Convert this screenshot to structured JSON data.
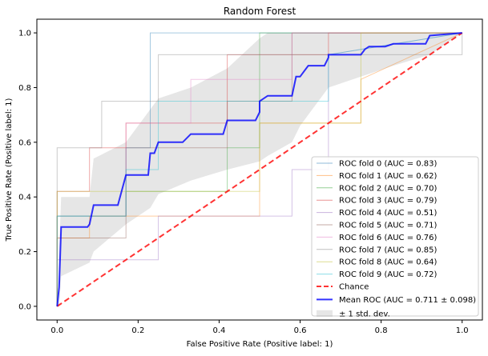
{
  "chart_data": {
    "type": "line",
    "title": "Random Forest",
    "xlabel": "False Positive Rate (Positive label: 1)",
    "ylabel": "True Positive Rate (Positive label: 1)",
    "xlim": [
      -0.05,
      1.05
    ],
    "ylim": [
      -0.05,
      1.05
    ],
    "xticks": [
      0.0,
      0.2,
      0.4,
      0.6,
      0.8,
      1.0
    ],
    "yticks": [
      0.0,
      0.2,
      0.4,
      0.6,
      0.8,
      1.0
    ],
    "xtick_labels": [
      "0.0",
      "0.2",
      "0.4",
      "0.6",
      "0.8",
      "1.0"
    ],
    "ytick_labels": [
      "0.0",
      "0.2",
      "0.4",
      "0.6",
      "0.8",
      "1.0"
    ],
    "grid": false,
    "legend_position": "lower-right",
    "series": [
      {
        "name": "ROC fold 0 (AUC = 0.83)",
        "color": "#1f77b4",
        "x": [
          0,
          0,
          0.17,
          0.17,
          0.23,
          0.23,
          1.0
        ],
        "y": [
          0,
          0.33,
          0.33,
          0.58,
          0.58,
          1.0,
          1.0
        ]
      },
      {
        "name": "ROC fold 1 (AUC = 0.62)",
        "color": "#ff7f0e",
        "x": [
          0,
          0,
          0.08,
          0.08,
          0.5,
          0.5,
          0.75,
          0.75,
          1.0
        ],
        "y": [
          0,
          0.25,
          0.25,
          0.33,
          0.33,
          0.67,
          0.67,
          0.83,
          1.0
        ]
      },
      {
        "name": "ROC fold 2 (AUC = 0.70)",
        "color": "#2ca02c",
        "x": [
          0,
          0,
          0.17,
          0.17,
          0.42,
          0.42,
          0.5,
          0.5,
          0.58,
          0.58,
          1.0
        ],
        "y": [
          0,
          0.33,
          0.33,
          0.42,
          0.42,
          0.58,
          0.58,
          1.0,
          1.0,
          1.0,
          1.0
        ]
      },
      {
        "name": "ROC fold 3 (AUC = 0.79)",
        "color": "#d62728",
        "x": [
          0,
          0,
          0.08,
          0.08,
          0.17,
          0.17,
          0.42,
          0.42,
          0.67,
          0.67,
          1.0
        ],
        "y": [
          0,
          0.42,
          0.42,
          0.58,
          0.58,
          0.67,
          0.67,
          0.92,
          0.92,
          1.0,
          1.0
        ]
      },
      {
        "name": "ROC fold 4 (AUC = 0.51)",
        "color": "#9467bd",
        "x": [
          0,
          0,
          0.25,
          0.25,
          0.58,
          0.58,
          0.67,
          0.67,
          1.0
        ],
        "y": [
          0,
          0.17,
          0.17,
          0.33,
          0.33,
          0.5,
          0.5,
          0.92,
          1.0
        ]
      },
      {
        "name": "ROC fold 5 (AUC = 0.71)",
        "color": "#8c564b",
        "x": [
          0,
          0,
          0.17,
          0.17,
          0.42,
          0.42,
          0.58,
          0.58,
          1.0
        ],
        "y": [
          0,
          0.25,
          0.25,
          0.58,
          0.58,
          0.75,
          0.75,
          1.0,
          1.0
        ]
      },
      {
        "name": "ROC fold 6 (AUC = 0.76)",
        "color": "#e377c2",
        "x": [
          0,
          0,
          0.17,
          0.17,
          0.33,
          0.33,
          0.58,
          0.58,
          1.0
        ],
        "y": [
          0,
          0.33,
          0.33,
          0.67,
          0.67,
          0.83,
          0.83,
          1.0,
          1.0
        ]
      },
      {
        "name": "ROC fold 7 (AUC = 0.85)",
        "color": "#7f7f7f",
        "x": [
          0,
          0,
          0.11,
          0.11,
          0.25,
          0.25,
          0.5,
          0.5,
          1.0,
          1.0
        ],
        "y": [
          0,
          0.58,
          0.58,
          0.75,
          0.75,
          0.92,
          0.92,
          0.92,
          0.92,
          1.0
        ]
      },
      {
        "name": "ROC fold 8 (AUC = 0.64)",
        "color": "#bcbd22",
        "x": [
          0,
          0,
          0.25,
          0.25,
          0.5,
          0.5,
          0.75,
          0.75,
          1.0
        ],
        "y": [
          0,
          0.42,
          0.42,
          0.42,
          0.42,
          0.67,
          0.67,
          1.0,
          1.0
        ]
      },
      {
        "name": "ROC fold 9 (AUC = 0.72)",
        "color": "#17becf",
        "x": [
          0,
          0,
          0.17,
          0.17,
          0.25,
          0.25,
          0.67,
          0.67,
          1.0
        ],
        "y": [
          0,
          0.33,
          0.33,
          0.5,
          0.5,
          0.75,
          0.75,
          0.92,
          1.0
        ]
      }
    ],
    "chance": {
      "name": "Chance",
      "color": "#ff0000",
      "x": [
        0,
        1
      ],
      "y": [
        0,
        1
      ]
    },
    "mean": {
      "name": "Mean ROC (AUC = 0.711 ± 0.098)",
      "color": "#0000ff",
      "x": [
        0.0,
        0.005,
        0.01,
        0.02,
        0.04,
        0.06,
        0.075,
        0.08,
        0.09,
        0.15,
        0.17,
        0.225,
        0.23,
        0.24,
        0.25,
        0.31,
        0.33,
        0.41,
        0.42,
        0.49,
        0.5,
        0.5,
        0.52,
        0.58,
        0.59,
        0.6,
        0.62,
        0.66,
        0.67,
        0.67,
        0.75,
        0.76,
        0.77,
        0.81,
        0.83,
        0.91,
        0.92,
        1.0
      ],
      "y": [
        0.0,
        0.07,
        0.29,
        0.29,
        0.29,
        0.29,
        0.29,
        0.3,
        0.37,
        0.37,
        0.48,
        0.48,
        0.56,
        0.56,
        0.6,
        0.6,
        0.63,
        0.63,
        0.68,
        0.68,
        0.71,
        0.75,
        0.77,
        0.77,
        0.84,
        0.84,
        0.88,
        0.88,
        0.91,
        0.92,
        0.92,
        0.94,
        0.95,
        0.95,
        0.96,
        0.96,
        0.99,
        1.0
      ]
    },
    "std_band": {
      "name": "± 1 std. dev.",
      "color": "#808080",
      "x": [
        0.0,
        0.005,
        0.01,
        0.08,
        0.09,
        0.17,
        0.23,
        0.25,
        0.33,
        0.42,
        0.5,
        0.52,
        0.58,
        0.6,
        0.67,
        0.75,
        0.83,
        0.92,
        1.0
      ],
      "upper": [
        0.0,
        0.2,
        0.4,
        0.4,
        0.54,
        0.6,
        0.72,
        0.76,
        0.8,
        0.87,
        0.98,
        1.0,
        1.0,
        1.0,
        1.0,
        1.0,
        1.0,
        1.0,
        1.0
      ],
      "lower": [
        0.0,
        0.0,
        0.11,
        0.16,
        0.2,
        0.3,
        0.36,
        0.41,
        0.46,
        0.5,
        0.53,
        0.55,
        0.6,
        0.66,
        0.8,
        0.84,
        0.88,
        0.92,
        1.0
      ]
    }
  }
}
